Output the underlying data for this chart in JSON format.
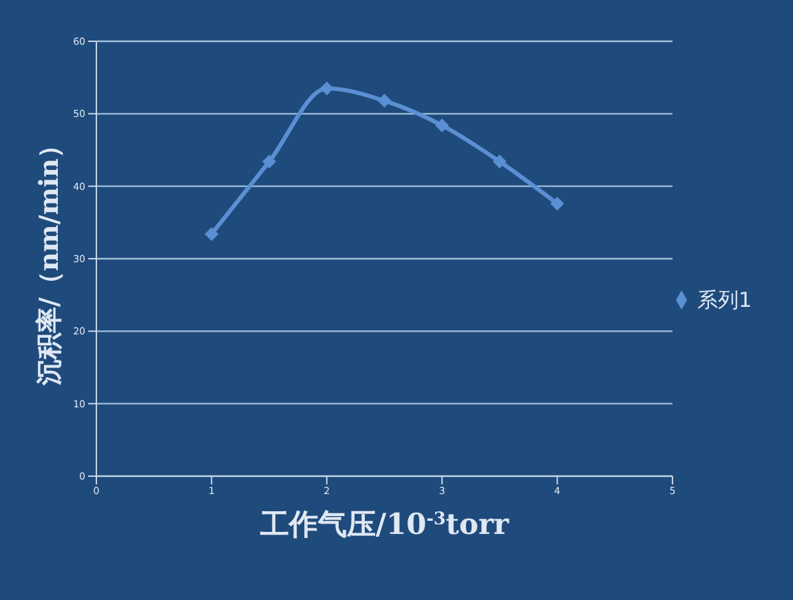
{
  "chart_data": {
    "type": "line",
    "xlabel": "工作气压/10$^{-3}$torr",
    "ylabel": "沉积率/（nm/min）",
    "x": [
      1,
      1.5,
      2,
      2.5,
      3,
      3.5,
      4
    ],
    "series": [
      {
        "name": "系列1",
        "color": "#5b8fd3",
        "values": [
          33.4,
          43.4,
          53.5,
          51.8,
          48.4,
          43.4,
          37.6
        ]
      }
    ],
    "xlim": [
      0,
      5
    ],
    "xticks": [
      0,
      1,
      2,
      3,
      4,
      5
    ],
    "ylim": [
      0,
      60
    ],
    "yticks": [
      0,
      10,
      20,
      30,
      40,
      50,
      60
    ],
    "grid": "y",
    "legend": "right",
    "marker": "diamond",
    "line_style": "solid"
  }
}
